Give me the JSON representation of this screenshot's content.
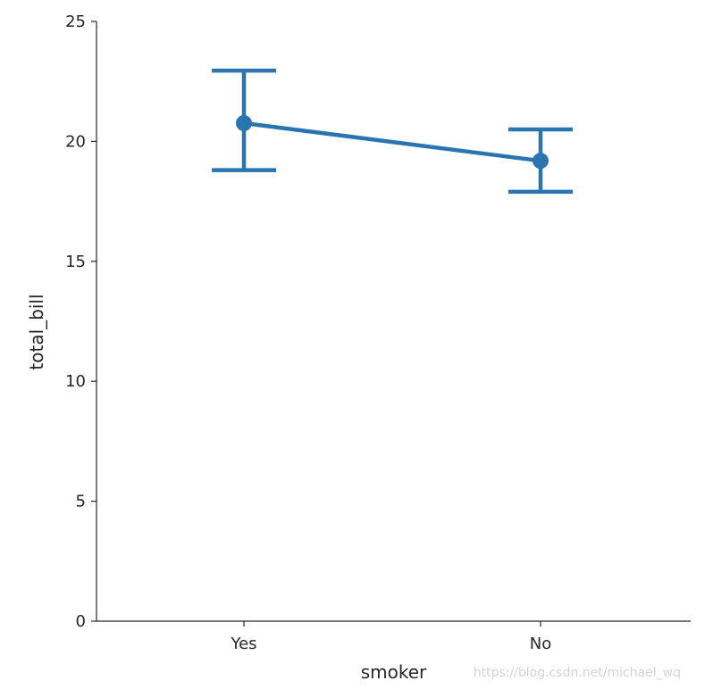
{
  "chart_data": {
    "type": "pointplot",
    "categories": [
      "Yes",
      "No"
    ],
    "series": [
      {
        "values": [
          20.76,
          19.19
        ],
        "ci_low": [
          18.8,
          17.9
        ],
        "ci_high": [
          22.95,
          20.5
        ]
      }
    ],
    "xlabel": "smoker",
    "ylabel": "total_bill",
    "ylim": [
      0,
      25
    ],
    "yticks": [
      0,
      5,
      10,
      15,
      20,
      25
    ],
    "grid": false,
    "color": "#2a75b0"
  },
  "watermark": "https://blog.csdn.net/michael_wq"
}
